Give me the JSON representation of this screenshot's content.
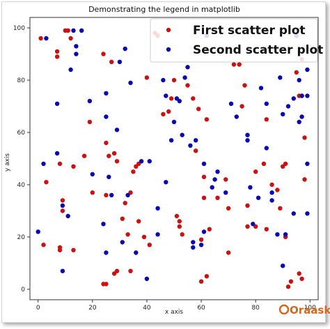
{
  "chart_data": {
    "type": "scatter",
    "title": "Demonstrating the legend in matplotlib",
    "xlabel": "x axis",
    "ylabel": "y axis",
    "xlim": [
      -3,
      103
    ],
    "ylim": [
      -4,
      104
    ],
    "xticks": [
      0,
      20,
      40,
      60,
      80,
      100
    ],
    "yticks": [
      0,
      20,
      40,
      60,
      80,
      100
    ],
    "grid": false,
    "legend_position": "upper right",
    "series": [
      {
        "name": "First scatter plot",
        "color": "#cc1111",
        "points": [
          [
            1,
            96
          ],
          [
            2,
            17
          ],
          [
            3,
            41
          ],
          [
            7,
            91
          ],
          [
            7,
            89
          ],
          [
            8,
            48
          ],
          [
            8,
            16
          ],
          [
            8,
            15
          ],
          [
            9,
            34
          ],
          [
            9,
            30
          ],
          [
            10,
            99
          ],
          [
            11,
            99
          ],
          [
            12,
            96
          ],
          [
            13,
            47
          ],
          [
            13,
            15
          ],
          [
            17,
            51
          ],
          [
            19,
            64
          ],
          [
            20,
            37
          ],
          [
            24,
            90
          ],
          [
            24,
            2
          ],
          [
            25,
            2
          ],
          [
            25,
            56
          ],
          [
            25,
            36
          ],
          [
            26,
            51
          ],
          [
            27,
            87
          ],
          [
            28,
            6
          ],
          [
            28,
            52
          ],
          [
            29,
            7
          ],
          [
            29,
            49
          ],
          [
            31,
            27
          ],
          [
            32,
            33
          ],
          [
            33,
            21
          ],
          [
            34,
            37
          ],
          [
            34,
            7
          ],
          [
            35,
            45
          ],
          [
            36,
            47
          ],
          [
            37,
            48
          ],
          [
            37,
            26
          ],
          [
            39,
            20
          ],
          [
            40,
            81
          ],
          [
            41,
            17
          ],
          [
            43,
            98
          ],
          [
            44,
            97
          ],
          [
            46,
            67
          ],
          [
            48,
            68
          ],
          [
            49,
            73
          ],
          [
            50,
            80
          ],
          [
            51,
            28
          ],
          [
            52,
            26
          ],
          [
            52,
            24
          ],
          [
            53,
            21
          ],
          [
            55,
            78
          ],
          [
            57,
            73
          ],
          [
            58,
            53
          ],
          [
            59,
            69
          ],
          [
            60,
            19
          ],
          [
            60,
            3
          ],
          [
            61,
            43
          ],
          [
            61,
            35
          ],
          [
            62,
            65
          ],
          [
            62,
            5
          ],
          [
            63,
            23
          ],
          [
            66,
            35
          ],
          [
            69,
            42
          ],
          [
            70,
            31
          ],
          [
            70,
            14
          ],
          [
            72,
            86
          ],
          [
            74,
            86
          ],
          [
            75,
            70
          ],
          [
            76,
            78
          ],
          [
            77,
            32
          ],
          [
            77,
            24
          ],
          [
            80,
            24
          ],
          [
            80,
            45
          ],
          [
            83,
            48
          ],
          [
            84,
            65
          ],
          [
            84,
            23
          ],
          [
            86,
            40
          ],
          [
            88,
            38
          ],
          [
            89,
            31
          ],
          [
            90,
            47
          ],
          [
            91,
            48
          ],
          [
            91,
            20
          ],
          [
            92,
            1
          ],
          [
            93,
            3
          ],
          [
            95,
            83
          ],
          [
            96,
            74
          ],
          [
            96,
            6
          ],
          [
            97,
            88
          ],
          [
            97,
            4
          ],
          [
            97,
            74
          ],
          [
            98,
            42
          ],
          [
            98,
            58
          ]
        ]
      },
      {
        "name": "Second scatter plot",
        "color": "#0a0ab4",
        "points": [
          [
            0,
            22
          ],
          [
            2,
            48
          ],
          [
            3,
            96
          ],
          [
            7,
            52
          ],
          [
            7,
            71
          ],
          [
            9,
            32
          ],
          [
            9,
            7
          ],
          [
            11,
            28
          ],
          [
            12,
            84
          ],
          [
            13,
            99
          ],
          [
            14,
            93
          ],
          [
            14,
            90
          ],
          [
            16,
            99
          ],
          [
            19,
            72
          ],
          [
            20,
            44
          ],
          [
            24,
            25
          ],
          [
            25,
            14
          ],
          [
            25,
            66
          ],
          [
            25,
            75
          ],
          [
            26,
            43
          ],
          [
            27,
            36
          ],
          [
            29,
            61
          ],
          [
            30,
            87
          ],
          [
            31,
            18
          ],
          [
            32,
            92
          ],
          [
            33,
            36
          ],
          [
            34,
            79
          ],
          [
            36,
            14
          ],
          [
            38,
            49
          ],
          [
            40,
            4
          ],
          [
            41,
            49
          ],
          [
            44,
            21
          ],
          [
            44,
            31
          ],
          [
            46,
            80
          ],
          [
            47,
            41
          ],
          [
            47,
            74
          ],
          [
            49,
            57
          ],
          [
            50,
            64
          ],
          [
            51,
            73
          ],
          [
            52,
            72
          ],
          [
            53,
            59
          ],
          [
            54,
            81
          ],
          [
            55,
            85
          ],
          [
            56,
            55
          ],
          [
            57,
            18
          ],
          [
            57,
            16
          ],
          [
            58,
            57
          ],
          [
            60,
            17
          ],
          [
            61,
            22
          ],
          [
            61,
            48
          ],
          [
            62,
            97
          ],
          [
            64,
            39
          ],
          [
            65,
            42
          ],
          [
            66,
            45
          ],
          [
            69,
            37
          ],
          [
            71,
            71
          ],
          [
            73,
            66
          ],
          [
            77,
            59
          ],
          [
            77,
            57
          ],
          [
            78,
            39
          ],
          [
            79,
            25
          ],
          [
            81,
            35
          ],
          [
            82,
            77
          ],
          [
            84,
            71
          ],
          [
            84,
            54
          ],
          [
            86,
            37
          ],
          [
            86,
            34
          ],
          [
            88,
            21
          ],
          [
            89,
            81
          ],
          [
            90,
            67
          ],
          [
            90,
            9
          ],
          [
            91,
            21
          ],
          [
            92,
            70
          ],
          [
            94,
            29
          ],
          [
            94,
            73
          ],
          [
            95,
            97
          ],
          [
            96,
            80
          ],
          [
            96,
            64
          ],
          [
            97,
            66
          ],
          [
            97,
            74
          ],
          [
            99,
            48
          ],
          [
            99,
            29
          ],
          [
            99,
            84
          ],
          [
            99,
            74
          ]
        ]
      }
    ],
    "xtick_labels": [
      "0",
      "20",
      "40",
      "60",
      "80",
      "100"
    ],
    "ytick_labels": [
      "0",
      "20",
      "40",
      "60",
      "80",
      "100"
    ]
  },
  "watermark": {
    "text": "Oraask"
  }
}
